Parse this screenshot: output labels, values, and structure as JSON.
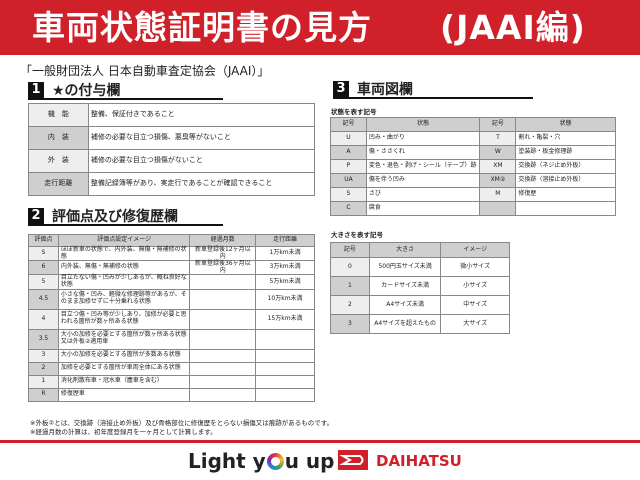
{
  "header": {
    "title": "車両状態証明書の見方　　(JAAI編)",
    "organization": "「一般財団法人 日本自動車査定協会（JAAI）」"
  },
  "section1": {
    "number": "1",
    "title": "★の付与欄",
    "rows": [
      [
        "機　能",
        "整備、保証付きであること"
      ],
      [
        "内　装",
        "補修の必要な目立つ損傷、悪臭等がないこと"
      ],
      [
        "外　装",
        "補修の必要な目立つ損傷がないこと"
      ],
      [
        "走行距離",
        "整備記録簿等があり、実走行であることが確認できること"
      ]
    ]
  },
  "section2": {
    "number": "2",
    "title": "評価点及び修復歴欄",
    "headers": [
      "評価点",
      "評価点設定イメージ",
      "経過月数",
      "走行距離"
    ],
    "rows": [
      [
        "S",
        "ほぼ新車の状態で、内外装、無傷・無補修の状態",
        "新車登録後12ヶ月以内",
        "1万km未満"
      ],
      [
        "6",
        "内外装、無傷・無補修の状態",
        "新車登録後36ヶ月以内",
        "3万km未満"
      ],
      [
        "5",
        "目立たない傷・凹みが少しあるが、概ね良好な状態",
        "",
        "5万km未満"
      ],
      [
        "4.5",
        "小さな傷・凹み、軽微な修理跡等があるが、そのまま加修せずに十分乗れる状態",
        "",
        "10万km未満"
      ],
      [
        "4",
        "目立つ傷・凹み等が少しあり、加修が必要と思われる箇所が数ヶ所ある状態",
        "",
        "15万km未満"
      ],
      [
        "3.5",
        "大小の加修を必要とする箇所が数ヶ所ある状態又は外板②適用車",
        "",
        ""
      ],
      [
        "3",
        "大小の加修を必要とする箇所が多数ある状態",
        "",
        ""
      ],
      [
        "2",
        "加修を必要とする箇所が車両全体にある状態",
        "",
        ""
      ],
      [
        "1",
        "消化剤散布車・冠水車（塵車を含む）",
        "",
        ""
      ],
      [
        "R",
        "修復歴車",
        "",
        ""
      ]
    ]
  },
  "section3": {
    "number": "3",
    "title": "車両図欄",
    "state_subtitle": "状態を表す記号",
    "state_headers": [
      "記号",
      "状態",
      "記号",
      "状態"
    ],
    "state_rows": [
      [
        "U",
        "凹み・曲がり",
        "T",
        "割れ・亀裂・穴"
      ],
      [
        "A",
        "傷・ささくれ",
        "W",
        "塗装跡・板金修理跡"
      ],
      [
        "P",
        "変色・退色・剥げ・シール（テープ）跡",
        "XM",
        "交換跡（ネジ止め外板）"
      ],
      [
        "UA",
        "傷を伴う凹み",
        "XM②",
        "交換跡（溶接止め外板）"
      ],
      [
        "S",
        "さび",
        "M",
        "修復歴"
      ],
      [
        "C",
        "腐食",
        "",
        ""
      ]
    ],
    "size_subtitle": "大きさを表す記号",
    "size_headers": [
      "記号",
      "大きさ",
      "イメージ"
    ],
    "size_rows": [
      [
        "0",
        "500円玉サイズ未満",
        "微小サイズ"
      ],
      [
        "1",
        "カードサイズ未満",
        "小サイズ"
      ],
      [
        "2",
        "A4サイズ未満",
        "中サイズ"
      ],
      [
        "3",
        "A4サイズを超えたもの",
        "大サイズ"
      ]
    ]
  },
  "notes": [
    "※外板②とは、交換跡（溶接止め外板）及び骨格部位に修復歴をとらない損傷又は痕跡があるものです。",
    "※経過月数の計算は、初年度登録月を一ヶ月として計算します。"
  ],
  "footer": {
    "slogan_pre": "Light y",
    "slogan_post": "u up",
    "brand": "DAIHATSU"
  },
  "colors": {
    "brand_red": "#d0202a"
  }
}
